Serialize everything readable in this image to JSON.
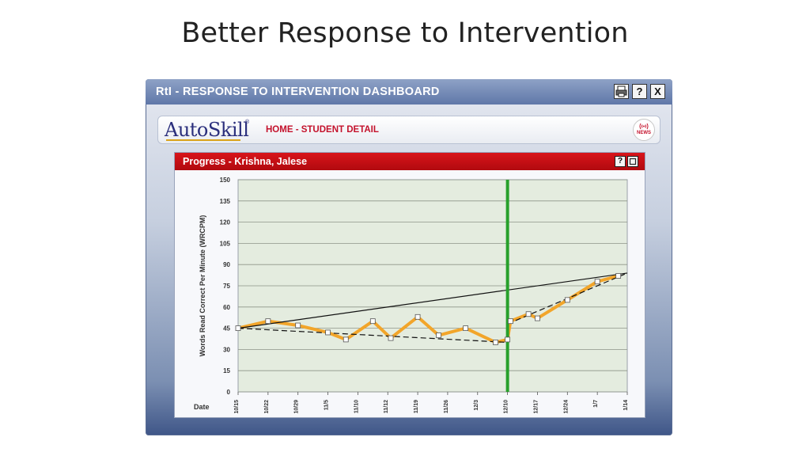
{
  "slide": {
    "title": "Better Response to Intervention"
  },
  "window": {
    "title": "RtI - RESPONSE TO INTERVENTION DASHBOARD",
    "buttons": {
      "print_icon": "printer-icon",
      "help": "?",
      "close": "X"
    }
  },
  "nav": {
    "logo": "AutoSkill",
    "logo_mark": "®",
    "breadcrumb": "HOME - STUDENT DETAIL",
    "news_label": "NEWS"
  },
  "panel": {
    "title": "Progress - Krishna, Jalese",
    "help": "?",
    "maximize_icon": "square-icon"
  },
  "colors": {
    "series_line": "#f2a52a",
    "intervention_line": "#27a02b",
    "plot_background": "#e4ecdf",
    "panel_header": "#c4111a"
  },
  "chart_data": {
    "type": "line",
    "ylabel": "Words Read Correct Per Minute (WRCPM)",
    "xlabel": "Date",
    "ylim": [
      0,
      150
    ],
    "yticks": [
      0,
      15,
      30,
      45,
      60,
      75,
      90,
      105,
      120,
      135,
      150
    ],
    "x_tick_labels": [
      "10/15",
      "10/22",
      "10/29",
      "11/5",
      "11/10",
      "11/12",
      "11/19",
      "11/26",
      "12/3",
      "12/10",
      "12/17",
      "12/24",
      "1/7",
      "1/14"
    ],
    "grid": true,
    "series": [
      {
        "x": [
          0,
          1,
          2,
          3,
          3.6,
          4.5,
          5.1,
          6,
          6.7,
          7.6,
          8.6,
          9,
          9.1,
          9.7,
          10,
          11,
          12,
          12.7
        ],
        "y": [
          45,
          50,
          47,
          42,
          37,
          50,
          38,
          53,
          40,
          45,
          35,
          37,
          50,
          55,
          52,
          65,
          78,
          82
        ]
      }
    ],
    "trend_lines": [
      {
        "style": "dashed",
        "from": [
          0,
          45
        ],
        "to": [
          9,
          35
        ]
      },
      {
        "style": "dashed",
        "from": [
          9,
          48
        ],
        "to": [
          13,
          84
        ]
      },
      {
        "style": "solid",
        "from": [
          0,
          45
        ],
        "to": [
          13,
          84
        ]
      }
    ],
    "intervention_x": 9
  }
}
